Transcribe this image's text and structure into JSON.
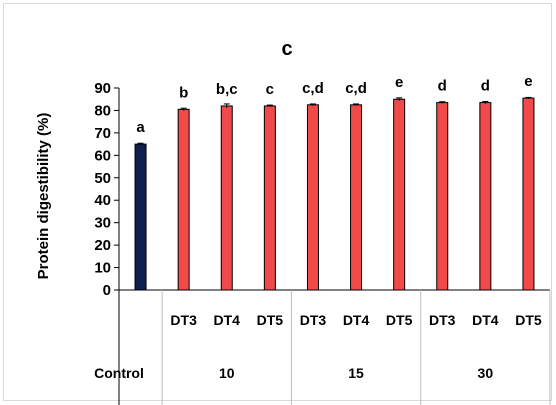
{
  "chart_data": {
    "type": "bar",
    "title": "c",
    "ylabel": "Protein digestibility (%)",
    "xlabel": "",
    "ylim": [
      0,
      90
    ],
    "yticks": [
      0,
      10,
      20,
      30,
      40,
      50,
      60,
      70,
      80,
      90
    ],
    "grid": false,
    "legend": "none",
    "categories": [
      "Control",
      "DT3",
      "DT4",
      "DT5",
      "DT3",
      "DT4",
      "DT5",
      "DT3",
      "DT4",
      "DT5"
    ],
    "groups": [
      {
        "label": "Control",
        "span": 1
      },
      {
        "label": "10",
        "span": 3
      },
      {
        "label": "15",
        "span": 3
      },
      {
        "label": "30",
        "span": 3
      }
    ],
    "values": [
      65,
      80.5,
      82,
      82,
      82.5,
      82.5,
      85,
      83.5,
      83.5,
      85.5
    ],
    "errors": [
      0.4,
      0.5,
      0.9,
      0.4,
      0.4,
      0.4,
      0.6,
      0.4,
      0.5,
      0.3
    ],
    "significance": [
      "a",
      "b",
      "b,c",
      "c",
      "c,d",
      "c,d",
      "e",
      "d",
      "d",
      "e"
    ],
    "colors": {
      "control": "#0d1e4f",
      "treatment": "#f04a4a",
      "axis": "#000000",
      "divider": "#bfbfbf"
    }
  }
}
